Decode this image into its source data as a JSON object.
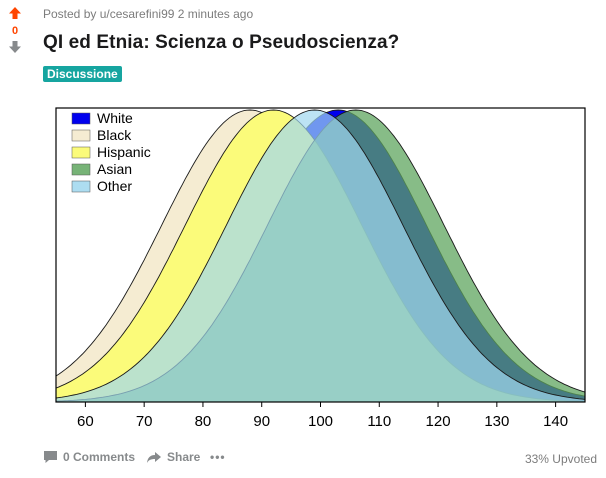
{
  "post": {
    "score": "0",
    "posted_by": "Posted by u/cesarefini99 2 minutes ago",
    "title": "QI ed Etnia: Scienza o Pseudoscienza?",
    "flair": "Discussione"
  },
  "footer": {
    "comments": "0 Comments",
    "share": "Share",
    "more": "•••",
    "upvoted": "33% Upvoted"
  },
  "colors": {
    "upvote": "#ff4500",
    "downvote": "#878a8c",
    "flair_bg": "#16a5a0"
  },
  "chart_data": {
    "type": "area",
    "title": "",
    "xlabel": "",
    "ylabel": "",
    "xlim": [
      55,
      145
    ],
    "x_ticks": [
      60,
      70,
      80,
      90,
      100,
      110,
      120,
      130,
      140
    ],
    "legend_position": "top-left",
    "grid": false,
    "series": [
      {
        "name": "White",
        "mean": 103,
        "sd": 15,
        "color": "#0000ee",
        "opacity": 1.0
      },
      {
        "name": "Black",
        "mean": 88,
        "sd": 15,
        "color": "#f5ecd2",
        "opacity": 1.0
      },
      {
        "name": "Hispanic",
        "mean": 92,
        "sd": 15,
        "color": "#fbfb7a",
        "opacity": 1.0
      },
      {
        "name": "Asian",
        "mean": 106,
        "sd": 15,
        "color": "#5fa65f",
        "opacity": 0.75
      },
      {
        "name": "Other",
        "mean": 99,
        "sd": 15,
        "color": "#9fd7ef",
        "opacity": 0.7
      }
    ]
  }
}
